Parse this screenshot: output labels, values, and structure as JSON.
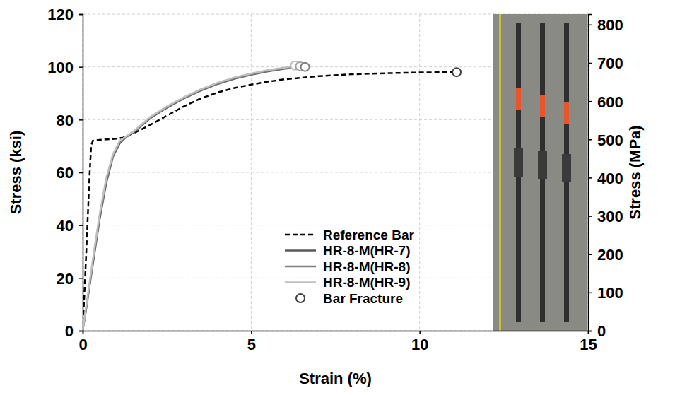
{
  "chart_data": {
    "type": "line",
    "x_label": "Strain (%)",
    "y_label": "Stress (ksi)",
    "y2_label": "Stress (MPa)",
    "xlim": [
      0,
      15
    ],
    "xticks": [
      0,
      5,
      10,
      15
    ],
    "ylim": [
      0,
      120
    ],
    "yticks": [
      0,
      20,
      40,
      60,
      80,
      100,
      120
    ],
    "y2lim": [
      0,
      827.4
    ],
    "y2ticks": [
      0,
      100,
      200,
      300,
      400,
      500,
      600,
      700,
      800
    ],
    "grid": true,
    "legend": "lower center",
    "series": [
      {
        "name": "Reference Bar",
        "type": "line",
        "color": "#000000",
        "line_style": "dashed",
        "x": [
          0,
          0.1,
          0.2,
          0.25,
          0.3,
          0.5,
          0.8,
          1.0,
          1.2,
          1.4,
          1.7,
          2,
          2.5,
          3,
          3.5,
          4,
          4.5,
          5,
          5.5,
          6,
          7,
          8,
          9,
          10,
          11.1
        ],
        "values": [
          0,
          28,
          58,
          70,
          72,
          72.3,
          72.6,
          72.8,
          73.2,
          74.2,
          76,
          78,
          81.5,
          85,
          88,
          90.3,
          92,
          93.3,
          94.4,
          95.3,
          96.5,
          97.2,
          97.6,
          97.9,
          98
        ]
      },
      {
        "name": "HR-8-M(HR-7)",
        "type": "line",
        "color": "#595959",
        "line_style": "solid",
        "x": [
          0,
          0.1,
          0.3,
          0.5,
          0.7,
          0.9,
          1.1,
          1.3,
          1.5,
          2,
          2.5,
          3,
          3.5,
          4,
          4.5,
          5,
          5.5,
          6,
          6.6
        ],
        "values": [
          0,
          8,
          25,
          42,
          56,
          66,
          71,
          73.5,
          75,
          80.5,
          84.5,
          88,
          91,
          93.5,
          95.5,
          97,
          98.3,
          99.3,
          100
        ]
      },
      {
        "name": "HR-8-M(HR-8)",
        "type": "line",
        "color": "#808080",
        "line_style": "solid",
        "x": [
          0,
          0.1,
          0.3,
          0.5,
          0.7,
          0.9,
          1.1,
          1.3,
          1.5,
          2,
          2.5,
          3,
          3.5,
          4,
          4.5,
          5,
          5.5,
          6,
          6.45
        ],
        "values": [
          0,
          8,
          26,
          43,
          57,
          66.5,
          71.5,
          73.6,
          75.2,
          80.8,
          84.8,
          88.2,
          91.2,
          93.7,
          95.7,
          97.2,
          98.5,
          99.5,
          100.2
        ]
      },
      {
        "name": "HR-8-M(HR-9)",
        "type": "line",
        "color": "#bfbfbf",
        "line_style": "solid",
        "x": [
          0,
          0.1,
          0.3,
          0.5,
          0.7,
          0.9,
          1.1,
          1.3,
          1.5,
          2,
          2.5,
          3,
          3.5,
          4,
          4.5,
          5,
          5.5,
          6,
          6.3
        ],
        "values": [
          0,
          9,
          27,
          44,
          58,
          67,
          72,
          73.8,
          75.5,
          81,
          85,
          88.5,
          91.5,
          94,
          96,
          97.5,
          98.8,
          99.8,
          100.5
        ]
      },
      {
        "name": "Bar Fracture",
        "type": "scatter",
        "marker": "open-circle",
        "colors": [
          "#404040",
          "#bfbfbf",
          "#a0a0a0",
          "#808080"
        ],
        "x": [
          11.1,
          6.3,
          6.45,
          6.6
        ],
        "values": [
          98,
          100.5,
          100.2,
          100
        ]
      }
    ]
  }
}
